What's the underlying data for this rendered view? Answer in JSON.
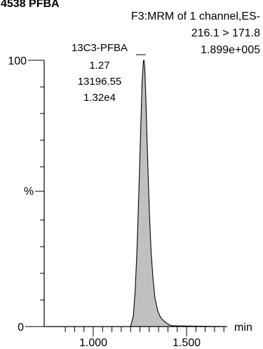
{
  "chart_data": {
    "type": "area",
    "title_fragment": "4538 PFBA",
    "header_lines": [
      "F3:MRM of 1 channel,ES-",
      "216.1 > 171.8",
      "1.899e+005"
    ],
    "peak": {
      "label_lines": [
        "13C3-PFBA",
        "1.27",
        "13196.55",
        "1.32e4"
      ],
      "apex_x": 1.27,
      "area": 13196.55,
      "height": "1.32e4"
    },
    "xlabel": "min",
    "ylabel": "%",
    "xlim": [
      0.8,
      1.74
    ],
    "ylim": [
      0,
      100
    ],
    "x_ticks": [
      1.0,
      1.5
    ],
    "x_tick_labels": [
      "1.000",
      "1.500"
    ],
    "y_tick_labels": [
      "0",
      "100"
    ],
    "x": [
      0.8,
      1.2,
      1.215,
      1.225,
      1.235,
      1.245,
      1.255,
      1.262,
      1.268,
      1.27,
      1.272,
      1.276,
      1.282,
      1.29,
      1.3,
      1.31,
      1.32,
      1.33,
      1.345,
      1.36,
      1.38,
      1.4,
      1.42,
      1.74
    ],
    "y": [
      0,
      0,
      4,
      14,
      30,
      52,
      76,
      92,
      99,
      100,
      100,
      97,
      85,
      66,
      44,
      28,
      18,
      11,
      6,
      3.5,
      2,
      1,
      0.3,
      0
    ],
    "fill_color": "#c0c0c0",
    "line_color": "#000000"
  }
}
